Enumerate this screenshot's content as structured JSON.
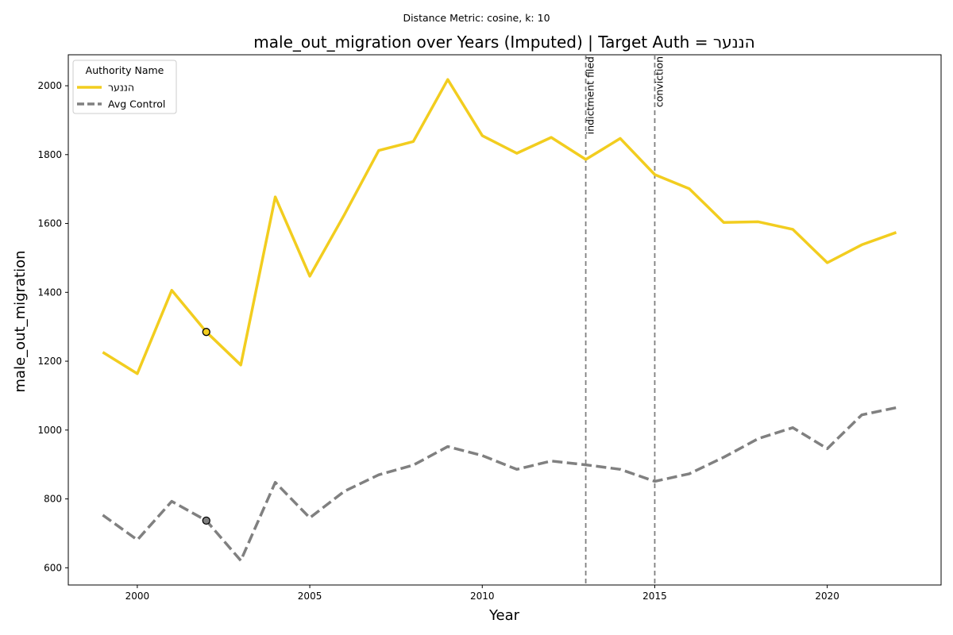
{
  "chart_data": {
    "type": "line",
    "suptitle": "Distance Metric: cosine, k: 10",
    "title": "male_out_migration over Years (Imputed) | Target Auth = הננער",
    "xlabel": "Year",
    "ylabel": "male_out_migration",
    "xlim": [
      1998,
      2023.3
    ],
    "ylim": [
      550,
      2090
    ],
    "xticks": [
      2000,
      2005,
      2010,
      2015,
      2020
    ],
    "yticks": [
      600,
      800,
      1000,
      1200,
      1400,
      1600,
      1800,
      2000
    ],
    "grid": false,
    "x": [
      1999,
      2000,
      2001,
      2002,
      2003,
      2004,
      2005,
      2006,
      2007,
      2008,
      2009,
      2010,
      2011,
      2012,
      2013,
      2014,
      2015,
      2016,
      2017,
      2018,
      2019,
      2020,
      2021,
      2022
    ],
    "series": [
      {
        "name": "הננער",
        "color": "#f2cd1f",
        "style": "solid",
        "values": [
          1226,
          1164,
          1406,
          1285,
          1189,
          1677,
          1447,
          1625,
          1812,
          1838,
          2018,
          1855,
          1804,
          1850,
          1786,
          1847,
          1742,
          1701,
          1603,
          1605,
          1583,
          1486,
          1538,
          1574
        ],
        "marker": {
          "x": 2002,
          "y": 1285
        }
      },
      {
        "name": "Avg Control",
        "color": "#808080",
        "style": "dashed",
        "values": [
          753,
          681,
          793,
          737,
          621,
          848,
          745,
          822,
          870,
          898,
          952,
          926,
          886,
          910,
          899,
          886,
          851,
          873,
          921,
          975,
          1007,
          946,
          1044,
          1065
        ],
        "marker": {
          "x": 2002,
          "y": 737
        }
      }
    ],
    "vlines": [
      {
        "x": 2013,
        "label": "indictment filed"
      },
      {
        "x": 2015,
        "label": "conviction"
      }
    ],
    "legend": {
      "title": "Authority Name",
      "position": "top-left",
      "entries": [
        "הננער",
        "Avg Control"
      ]
    }
  }
}
